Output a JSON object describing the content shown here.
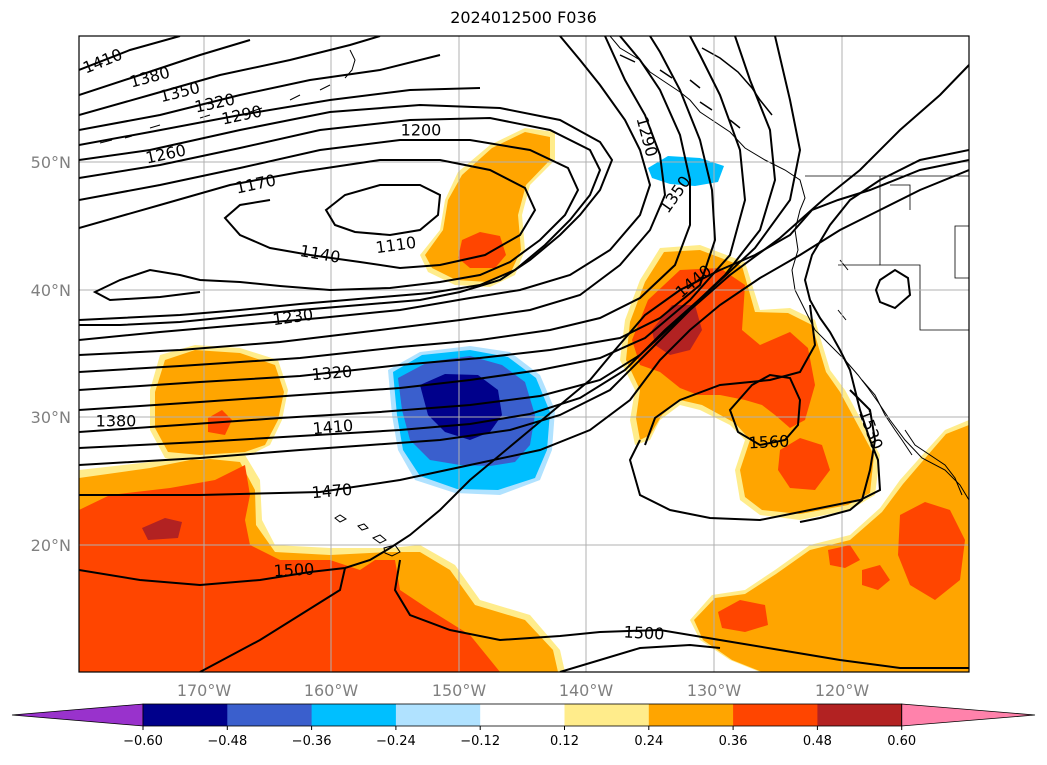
{
  "title": "2024012500 F036",
  "latitude_labels": [
    "50°N",
    "40°N",
    "30°N",
    "20°N"
  ],
  "longitude_labels": [
    "170°W",
    "160°W",
    "150°W",
    "140°W",
    "130°W",
    "120°W"
  ],
  "contour_labels": [
    "1410",
    "1380",
    "1350",
    "1320",
    "1290",
    "1260",
    "1200",
    "1170",
    "1140",
    "1110",
    "1230",
    "1320",
    "1380",
    "1410",
    "1470",
    "1500",
    "1500",
    "1290",
    "1350",
    "1440",
    "1560",
    "1530"
  ],
  "colorbar": {
    "ticks": [
      "−0.60",
      "−0.48",
      "−0.36",
      "−0.24",
      "−0.12",
      "0.12",
      "0.24",
      "0.36",
      "0.48",
      "0.60"
    ],
    "colors": [
      "#9932cc",
      "#00008b",
      "#3a5fcd",
      "#00bfff",
      "#b0e2ff",
      "#ffffff",
      "#ffec8b",
      "#ffa500",
      "#ff4500",
      "#b22222",
      "#ff82ab"
    ]
  }
}
